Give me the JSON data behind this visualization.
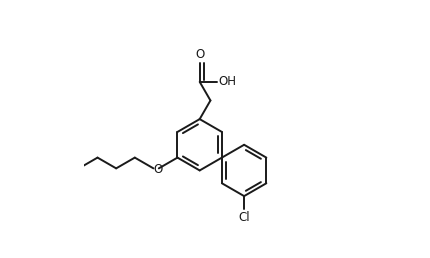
{
  "bg_color": "#ffffff",
  "line_color": "#1a1a1a",
  "line_width": 1.4,
  "fig_width": 4.3,
  "fig_height": 2.58,
  "dpi": 100,
  "xlim": [
    -2.8,
    3.8
  ],
  "ylim": [
    -2.6,
    2.2
  ]
}
